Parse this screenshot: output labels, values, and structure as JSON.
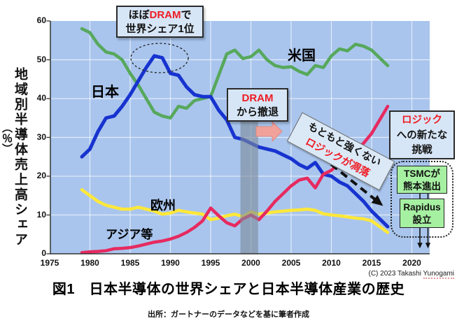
{
  "figure": {
    "caption": "図1　日本半導体の世界シェアと日本半導体産業の歴史",
    "source": "出所：ガートナーのデータなどを基に筆者作成",
    "copyright_prefix": "(C) 2023 Takashi ",
    "copyright_name": "Yunogami"
  },
  "axes": {
    "y_label": "地域別半導体売上高シェア",
    "y_unit": "（％）"
  },
  "series_labels": {
    "japan": "日本",
    "usa": "米国",
    "europe": "欧州",
    "asia": "アジア等"
  },
  "annotations": {
    "dram_top": {
      "pre": "ほぼ",
      "em": "DRAM",
      "post": "で",
      "line2": "世界シェア1位"
    },
    "dram_exit": {
      "line1": "DRAM",
      "line2": "から撤退"
    },
    "logic_decline": {
      "line1": "もともと強くない",
      "line2": "ロジックが凋落"
    },
    "logic_challenge": {
      "line1": "ロジック",
      "line2": "への新たな",
      "line3": "挑戦"
    },
    "tsmc": {
      "line1": "TSMCが",
      "line2": "熊本進出"
    },
    "rapidus": {
      "line1": "Rapidus",
      "line2": "設立"
    }
  },
  "colors": {
    "plot_bg": "#a9c5ed",
    "japan": "#1733cf",
    "usa": "#57a85c",
    "europe": "#ffe839",
    "asia": "#e62a60",
    "era_band": "#7d8a9b",
    "annotation_blue": "#d7e6f6",
    "annotation_green": "#a6f0a2",
    "accent_red": "#ee1c24"
  },
  "chart_data": {
    "type": "line",
    "title": "図1　日本半導体の世界シェアと日本半導体産業の歴史",
    "ylabel": "地域別半導体売上高シェア（％）",
    "xlabel": "",
    "xlim": [
      1975,
      2022
    ],
    "ylim": [
      0,
      60
    ],
    "grid": true,
    "legend_position": "on-line-labels",
    "x_ticks": [
      1975,
      1980,
      1985,
      1990,
      1995,
      2000,
      2005,
      2010,
      2015,
      2020
    ],
    "y_ticks": [
      0,
      10,
      20,
      30,
      40,
      50,
      60
    ],
    "x": [
      1979,
      1980,
      1981,
      1982,
      1983,
      1984,
      1985,
      1986,
      1987,
      1988,
      1989,
      1990,
      1991,
      1992,
      1993,
      1994,
      1995,
      1996,
      1997,
      1998,
      1999,
      2000,
      2001,
      2002,
      2003,
      2004,
      2005,
      2006,
      2007,
      2008,
      2009,
      2010,
      2011,
      2012,
      2013,
      2014,
      2015,
      2016,
      2017
    ],
    "series": [
      {
        "name": "日本",
        "color": "#1733cf",
        "values": [
          25,
          27,
          31.5,
          35,
          35.5,
          38,
          41,
          44.5,
          48,
          51,
          50.5,
          46.5,
          46,
          43,
          41,
          40.5,
          40.5,
          37,
          34.5,
          30,
          29.5,
          28.5,
          27.5,
          27,
          26.5,
          25.5,
          24.5,
          23,
          22,
          23.5,
          20.5,
          20,
          18.5,
          17.5,
          15.5,
          13.5,
          11,
          9,
          7
        ]
      },
      {
        "name": "米国",
        "color": "#57a85c",
        "values": [
          58,
          57,
          54,
          52,
          51.5,
          50,
          46.5,
          43.5,
          40,
          36.5,
          35.5,
          35,
          38,
          37.5,
          39.5,
          40,
          40.5,
          46,
          51.5,
          52.5,
          50.3,
          50.8,
          52.5,
          50,
          48.5,
          48,
          48.2,
          47,
          46.2,
          48.5,
          48,
          51,
          52.8,
          52.3,
          54,
          53.5,
          52.5,
          50.5,
          48.5
        ]
      },
      {
        "name": "欧州",
        "color": "#ffe839",
        "values": [
          16.5,
          15,
          13.5,
          12.5,
          12,
          11.5,
          11.5,
          12,
          11.5,
          11,
          10.2,
          10.5,
          11.2,
          10.8,
          10.5,
          10.2,
          8.8,
          9.2,
          9.8,
          10.2,
          9.6,
          10.8,
          10.2,
          10.5,
          10.8,
          11,
          11.2,
          11.3,
          11.5,
          11.2,
          10.3,
          10,
          9.8,
          9.5,
          9.2,
          9,
          8.5,
          7,
          5.5
        ]
      },
      {
        "name": "アジア等",
        "color": "#e62a60",
        "values": [
          0.3,
          0.5,
          0.6,
          0.8,
          1.3,
          1.4,
          1.6,
          2,
          2.5,
          3,
          3.3,
          3.8,
          4.5,
          5.5,
          6.8,
          8.5,
          11.8,
          9.8,
          8,
          7.2,
          9,
          10,
          8.8,
          11,
          13.5,
          15.5,
          17.5,
          19,
          19.5,
          17,
          20.5,
          21.5,
          23.5,
          24.5,
          26.5,
          28.5,
          31,
          34.5,
          38
        ]
      }
    ],
    "band_years": [
      1998.7,
      2000.9
    ],
    "event_years": [
      2021,
      2022
    ]
  }
}
